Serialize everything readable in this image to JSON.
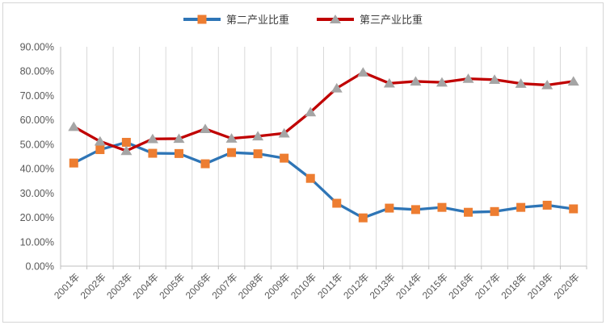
{
  "legend": {
    "series1_label": "第二产业比重",
    "series2_label": "第三产业比重"
  },
  "colors": {
    "series1_line": "#2e75b6",
    "series1_marker": "#ed7d31",
    "series2_line": "#c00000",
    "series2_marker": "#a5a5a5",
    "gridline": "#d9d9d9",
    "axis_line": "#bfbfbf",
    "tick_label": "#595959",
    "legend_text": "#3f3f3f",
    "frame_border": "#d6d6d6"
  },
  "chart_data": {
    "type": "line",
    "title": "",
    "xlabel": "",
    "ylabel": "",
    "categories": [
      "2001年",
      "2002年",
      "2003年",
      "2004年",
      "2005年",
      "2006年",
      "2007年",
      "2008年",
      "2009年",
      "2010年",
      "2011年",
      "2012年",
      "2013年",
      "2014年",
      "2015年",
      "2016年",
      "2017年",
      "2018年",
      "2019年",
      "2020年"
    ],
    "series": [
      {
        "name": "第二产业比重",
        "marker": "square",
        "line_color": "#2e75b6",
        "marker_color": "#ed7d31",
        "values": [
          42.3,
          47.8,
          50.8,
          46.3,
          46.2,
          42.0,
          46.6,
          46.1,
          44.3,
          36.0,
          25.8,
          19.8,
          23.8,
          23.2,
          24.1,
          22.1,
          22.4,
          24.1,
          25.0,
          23.5
        ]
      },
      {
        "name": "第三产业比重",
        "marker": "triangle",
        "line_color": "#c00000",
        "marker_color": "#a5a5a5",
        "values": [
          57.2,
          51.2,
          47.3,
          52.2,
          52.3,
          56.3,
          52.4,
          53.3,
          54.5,
          63.2,
          73.0,
          79.5,
          75.0,
          75.8,
          75.4,
          76.9,
          76.5,
          74.9,
          74.3,
          75.8
        ]
      }
    ],
    "ylim": [
      0,
      90
    ],
    "ytick_step": 10,
    "ytick_labels": [
      "0.00%",
      "10.00%",
      "20.00%",
      "30.00%",
      "40.00%",
      "50.00%",
      "60.00%",
      "70.00%",
      "80.00%",
      "90.00%"
    ],
    "grid": "vertical-only",
    "legend_position": "top-center",
    "x_tick_label_rotation_deg": -45
  }
}
